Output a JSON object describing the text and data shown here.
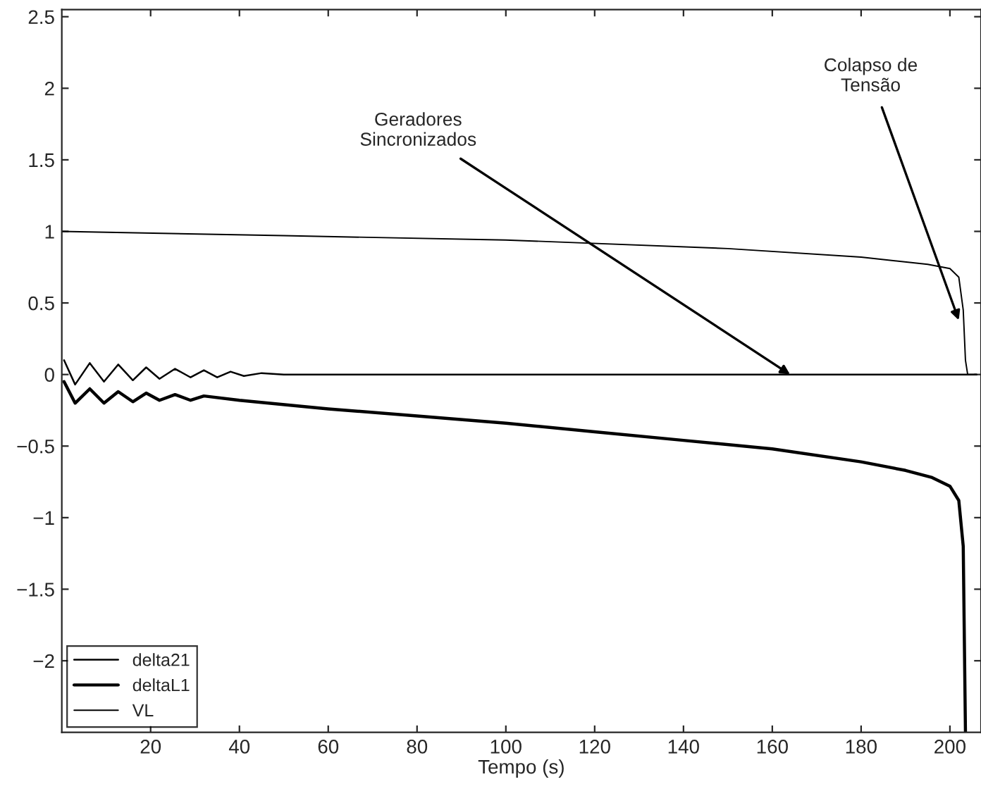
{
  "chart_data": {
    "type": "line",
    "xlabel": "Tempo (s)",
    "xlim": [
      0,
      207
    ],
    "ylim": [
      -2.5,
      2.55
    ],
    "xticks": [
      20,
      40,
      60,
      80,
      100,
      120,
      140,
      160,
      180,
      200
    ],
    "yticks": [
      {
        "value": -2,
        "label": "−2"
      },
      {
        "value": -1.5,
        "label": "−1.5"
      },
      {
        "value": -1,
        "label": "−1"
      },
      {
        "value": -0.5,
        "label": "−0.5"
      },
      0,
      0.5,
      1,
      1.5,
      2,
      2.5
    ],
    "grid": false,
    "legend": "bottom left",
    "line_style": "solid",
    "marker": "none",
    "series": [
      {
        "name": "delta21",
        "color": "#000000",
        "x": [
          0.5,
          3,
          6.3,
          9.5,
          12.7,
          16,
          19,
          22,
          25.5,
          29,
          32,
          35,
          38,
          41,
          45,
          50,
          204,
          206
        ],
        "values": [
          0.1,
          -0.07,
          0.08,
          -0.05,
          0.07,
          -0.04,
          0.05,
          -0.03,
          0.04,
          -0.02,
          0.03,
          -0.02,
          0.02,
          -0.01,
          0.01,
          0,
          0,
          0
        ]
      },
      {
        "name": "deltaL1",
        "color": "#000000",
        "x": [
          0.5,
          3,
          6.3,
          9.5,
          12.7,
          16,
          19,
          22,
          25.5,
          29,
          32,
          40,
          60,
          80,
          100,
          120,
          140,
          160,
          180,
          190,
          196,
          200,
          202,
          203,
          203.5
        ],
        "values": [
          -0.05,
          -0.2,
          -0.1,
          -0.2,
          -0.12,
          -0.19,
          -0.13,
          -0.18,
          -0.14,
          -0.18,
          -0.15,
          -0.18,
          -0.24,
          -0.29,
          -0.34,
          -0.4,
          -0.46,
          -0.52,
          -0.61,
          -0.67,
          -0.72,
          -0.78,
          -0.88,
          -1.2,
          -2.5
        ]
      },
      {
        "name": "VL",
        "color": "#000000",
        "x": [
          0,
          50,
          100,
          150,
          180,
          195,
          200,
          202,
          203,
          203.5,
          204,
          206
        ],
        "values": [
          1.0,
          0.97,
          0.94,
          0.88,
          0.82,
          0.77,
          0.74,
          0.68,
          0.45,
          0.1,
          0,
          0
        ]
      }
    ],
    "annotations": [
      {
        "text": "Geradores\nSincronizados",
        "x": 164,
        "y": 0
      },
      {
        "text": "Colapso de\nTensão",
        "x": 202,
        "y": 0.38
      }
    ]
  }
}
